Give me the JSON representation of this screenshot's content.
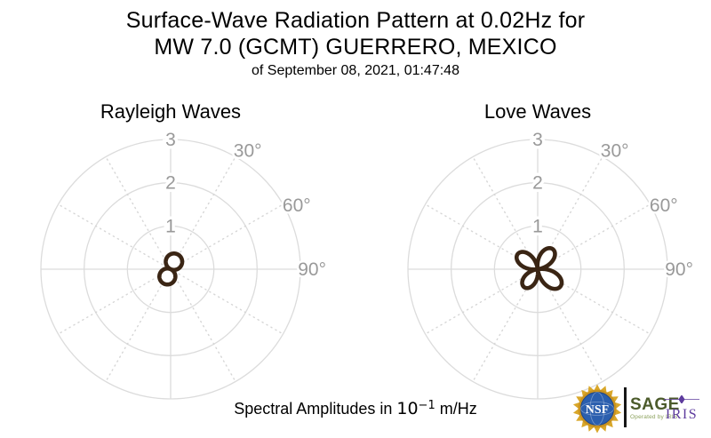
{
  "title": {
    "line1": "Surface-Wave Radiation Pattern at 0.02Hz for",
    "line2": "MW 7.0 (GCMT) GUERRERO, MEXICO",
    "line3": "of September 08, 2021, 01:47:48"
  },
  "caption": {
    "prefix": "Spectral Amplitudes in ",
    "base": "10",
    "exponent": "−1",
    "suffix": " m/Hz"
  },
  "logos": {
    "nsf_label": "NSF",
    "sage_label": "SAGE",
    "sage_sub": "Operated by IRIS",
    "iris_label": "IRIS"
  },
  "colors": {
    "grid": "#dcdcdc",
    "grid_dotted": "#d6d6d6",
    "axis_labels": "#999999",
    "pattern": "#3a2514",
    "title": "#000000",
    "sage_green": "#4c5b2b",
    "operated_green": "#8ba15c",
    "iris_purple": "#5e3c9e",
    "nsf_blue": "#2b5fae",
    "nsf_gold": "#d9a72a"
  },
  "chart_data": [
    {
      "type": "polar",
      "title": "Rayleigh Waves",
      "r_ticks": [
        1,
        2,
        3
      ],
      "r_max": 3,
      "r_units": "10^-1 m/Hz",
      "angle_labels": [
        {
          "angle_deg": 30,
          "label": "30°"
        },
        {
          "angle_deg": 60,
          "label": "60°"
        },
        {
          "angle_deg": 90,
          "label": "90°"
        }
      ],
      "angle_grid_step_deg": 30,
      "zero_direction": "up",
      "clockwise": true,
      "pattern": {
        "name": "rayleigh-radiation-lobes",
        "lobes": 2,
        "rotation_deg": 24,
        "lobe_peak_azimuths_deg": [
          24,
          204
        ],
        "lobe_amplitudes": [
          0.38,
          0.37
        ]
      }
    },
    {
      "type": "polar",
      "title": "Love Waves",
      "r_ticks": [
        1,
        2,
        3
      ],
      "r_max": 3,
      "r_units": "10^-1 m/Hz",
      "angle_labels": [
        {
          "angle_deg": 30,
          "label": "30°"
        },
        {
          "angle_deg": 60,
          "label": "60°"
        },
        {
          "angle_deg": 90,
          "label": "90°"
        }
      ],
      "angle_grid_step_deg": 30,
      "zero_direction": "up",
      "clockwise": true,
      "pattern": {
        "name": "love-radiation-lobes",
        "lobes": 4,
        "rotation_deg": -8,
        "lobe_peak_azimuths_deg": [
          37,
          127,
          217,
          307
        ],
        "lobe_amplitudes": [
          0.58,
          0.66,
          0.52,
          0.58
        ]
      }
    }
  ]
}
